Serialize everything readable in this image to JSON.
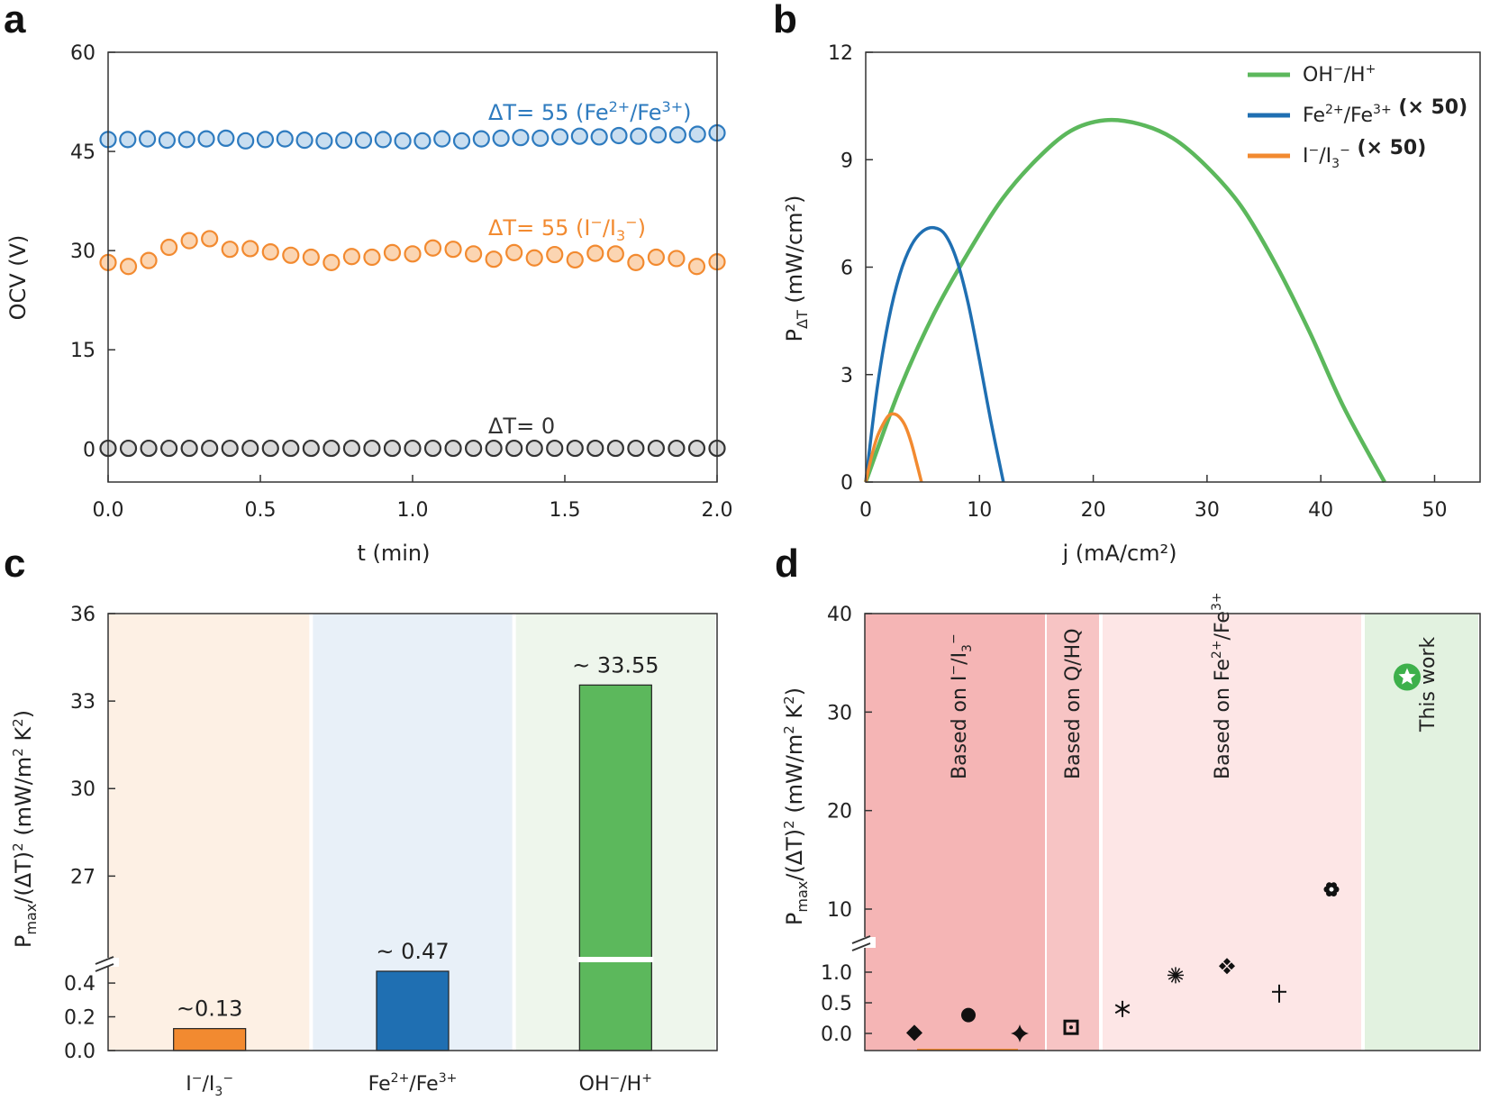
{
  "panels": {
    "a": {
      "label": "a",
      "chart_data": {
        "type": "scatter",
        "xlabel": "t (min)",
        "ylabel": "OCV (V)",
        "xlim": [
          0,
          2.0
        ],
        "ylim": [
          -5,
          60
        ],
        "xticks": [
          "0.0",
          "0.5",
          "1.0",
          "1.5",
          "2.0"
        ],
        "yticks": [
          "0",
          "15",
          "30",
          "45",
          "60"
        ],
        "xtick_values": [
          0,
          0.5,
          1.0,
          1.5,
          2.0
        ],
        "ytick_values": [
          0,
          15,
          30,
          45,
          60
        ],
        "series": [
          {
            "name": "ΔT= 55 (Fe²⁺/Fe³⁺)",
            "color": "#2e7bbf",
            "fill": "#c9def0",
            "values": [
              46.8,
              46.8,
              46.9,
              46.7,
              46.8,
              46.9,
              47.0,
              46.6,
              46.8,
              46.9,
              46.7,
              46.6,
              46.7,
              46.7,
              46.8,
              46.6,
              46.6,
              46.9,
              46.6,
              46.9,
              47.0,
              47.1,
              47.0,
              47.2,
              47.3,
              47.2,
              47.4,
              47.3,
              47.5,
              47.5,
              47.6,
              47.8
            ]
          },
          {
            "name": "ΔT= 55 (I⁻/I₃⁻)",
            "color": "#f28a30",
            "fill": "#fbd5b2",
            "values": [
              28.2,
              27.6,
              28.5,
              30.5,
              31.5,
              31.8,
              30.2,
              30.3,
              29.8,
              29.3,
              29.0,
              28.2,
              29.1,
              29.0,
              29.7,
              29.5,
              30.4,
              30.2,
              29.5,
              28.7,
              29.7,
              28.9,
              29.4,
              28.6,
              29.6,
              29.5,
              28.2,
              29.0,
              28.8,
              27.6,
              28.3
            ]
          },
          {
            "name": "ΔT= 0",
            "color": "#333333",
            "fill": "#d9d9d9",
            "values": [
              0.1,
              0.1,
              0.1,
              0.1,
              0.1,
              0.1,
              0.1,
              0.1,
              0.1,
              0.1,
              0.1,
              0.1,
              0.1,
              0.1,
              0.1,
              0.1,
              0.1,
              0.1,
              0.1,
              0.1,
              0.1,
              0.1,
              0.1,
              0.1,
              0.1,
              0.1,
              0.1,
              0.1,
              0.1,
              0.1,
              0.1
            ]
          }
        ],
        "annotations": [
          {
            "parts": [
              "ΔT= 55 (Fe",
              "2+",
              "/Fe",
              "3+",
              ")"
            ],
            "color": "#2e7bbf"
          },
          {
            "parts": [
              "ΔT= 55 (I",
              "−",
              "/I",
              "3",
              "−",
              ")"
            ],
            "color": "#f28a30"
          },
          {
            "parts": [
              "ΔT= 0"
            ],
            "color": "#333333"
          }
        ]
      }
    },
    "b": {
      "label": "b",
      "chart_data": {
        "type": "line",
        "xlabel": "j (mA/cm²)",
        "ylabel_main": "P",
        "ylabel_sub": "ΔT",
        "ylabel_rest": " (mW/cm²)",
        "xlim": [
          0,
          54
        ],
        "ylim": [
          0,
          12
        ],
        "xticks": [
          "0",
          "10",
          "20",
          "30",
          "40",
          "50"
        ],
        "yticks": [
          "0",
          "3",
          "6",
          "9",
          "12"
        ],
        "xtick_values": [
          0,
          10,
          20,
          30,
          40,
          50
        ],
        "ytick_values": [
          0,
          3,
          6,
          9,
          12
        ],
        "series": [
          {
            "name": "OH⁻/H⁺",
            "color": "#5cb85c",
            "x": [
              0,
              3,
              6,
              9,
              12,
              15,
              18,
              21,
              24,
              27,
              30,
              33,
              36,
              39,
              42,
              45.6
            ],
            "y": [
              0,
              2.6,
              4.7,
              6.4,
              7.9,
              9.0,
              9.8,
              10.1,
              10.0,
              9.6,
              8.8,
              7.7,
              6.1,
              4.2,
              2.1,
              0
            ]
          },
          {
            "name": "Fe²⁺/Fe³⁺ (× 50)",
            "color": "#1f6fb2",
            "x": [
              0,
              1,
              2,
              3,
              4,
              5,
              6,
              7,
              8,
              9,
              10,
              11,
              12.1
            ],
            "y": [
              0,
              2.6,
              4.5,
              5.8,
              6.6,
              7.0,
              7.1,
              6.9,
              6.2,
              5.0,
              3.4,
              1.7,
              0
            ]
          },
          {
            "name": "I⁻/I₃⁻ (× 50)",
            "color": "#f28a30",
            "x": [
              0,
              0.5,
              1,
              1.5,
              2,
              2.5,
              3,
              3.5,
              4,
              4.5,
              4.9
            ],
            "y": [
              0,
              0.7,
              1.25,
              1.6,
              1.85,
              1.9,
              1.8,
              1.55,
              1.1,
              0.5,
              0
            ]
          }
        ],
        "legend": [
          {
            "parts": [
              "OH",
              "−",
              "/H",
              "+"
            ],
            "bold": "",
            "color": "#5cb85c"
          },
          {
            "parts": [
              "Fe",
              "2+",
              "/Fe",
              "3+"
            ],
            "bold": "(× 50)",
            "color": "#1f6fb2"
          },
          {
            "parts": [
              "I",
              "−",
              "/I",
              "3",
              "−"
            ],
            "bold": "(× 50)",
            "color": "#f28a30",
            "label_color": "#f28a30"
          }
        ],
        "legend_position": "top-right"
      }
    },
    "c": {
      "label": "c",
      "chart_data": {
        "type": "bar",
        "categories": [
          "I⁻/I₃⁻",
          "Fe²⁺/Fe³⁺",
          "OH⁻/H⁺"
        ],
        "values": [
          0.13,
          0.47,
          33.55
        ],
        "value_labels": [
          "~0.13",
          "~ 0.47",
          "~ 33.55"
        ],
        "colors": [
          "#f28a30",
          "#1f6fb2",
          "#5cb85c"
        ],
        "backgrounds": [
          "#fdf0e4",
          "#e8f0f8",
          "#eef6ec"
        ],
        "ylabel": "Pmax/(ΔT)² (mW/m² K²)",
        "y_broken": true,
        "y_lower_ticks": [
          "0.0",
          "0.2",
          "0.4"
        ],
        "y_upper_ticks": [
          "27",
          "30",
          "33",
          "36"
        ],
        "y_lower_range": [
          0,
          0.55
        ],
        "y_upper_range": [
          24.2,
          36
        ]
      }
    },
    "d": {
      "label": "d",
      "chart_data": {
        "type": "scatter",
        "ylabel": "Pmax/(ΔT)² (mW/m² K²)",
        "y_broken": true,
        "y_lower_ticks": [
          "0.0",
          "0.5",
          "1.0"
        ],
        "y_upper_ticks": [
          "10",
          "20",
          "30",
          "40"
        ],
        "regions": [
          {
            "label_parts": [
              "Based on I",
              "−",
              "/I",
              "3",
              "−"
            ],
            "color": "#f5b5b5"
          },
          {
            "label_parts": [
              "Based on Q/HQ"
            ],
            "color": "#f7c4c4"
          },
          {
            "label_parts": [
              "Based on Fe",
              "2+",
              "/Fe",
              "3+"
            ],
            "color": "#fde6e6"
          },
          {
            "label_parts": [
              "This work"
            ],
            "color": "#e2f2e0",
            "label_color": "#3db04b"
          }
        ],
        "points": [
          {
            "value": 0.01,
            "marker": "diamond"
          },
          {
            "value": 0.3,
            "marker": "circle"
          },
          {
            "value": 0.0,
            "marker": "star4"
          },
          {
            "value": 0.1,
            "marker": "square-dot"
          },
          {
            "value": 0.4,
            "marker": "asterisk"
          },
          {
            "value": 0.95,
            "marker": "sunburst"
          },
          {
            "value": 1.1,
            "marker": "clover"
          },
          {
            "value": 0.65,
            "marker": "cross"
          },
          {
            "value": 12.0,
            "marker": "flower"
          },
          {
            "value": 33.55,
            "marker": "this-work-star"
          }
        ]
      }
    }
  }
}
